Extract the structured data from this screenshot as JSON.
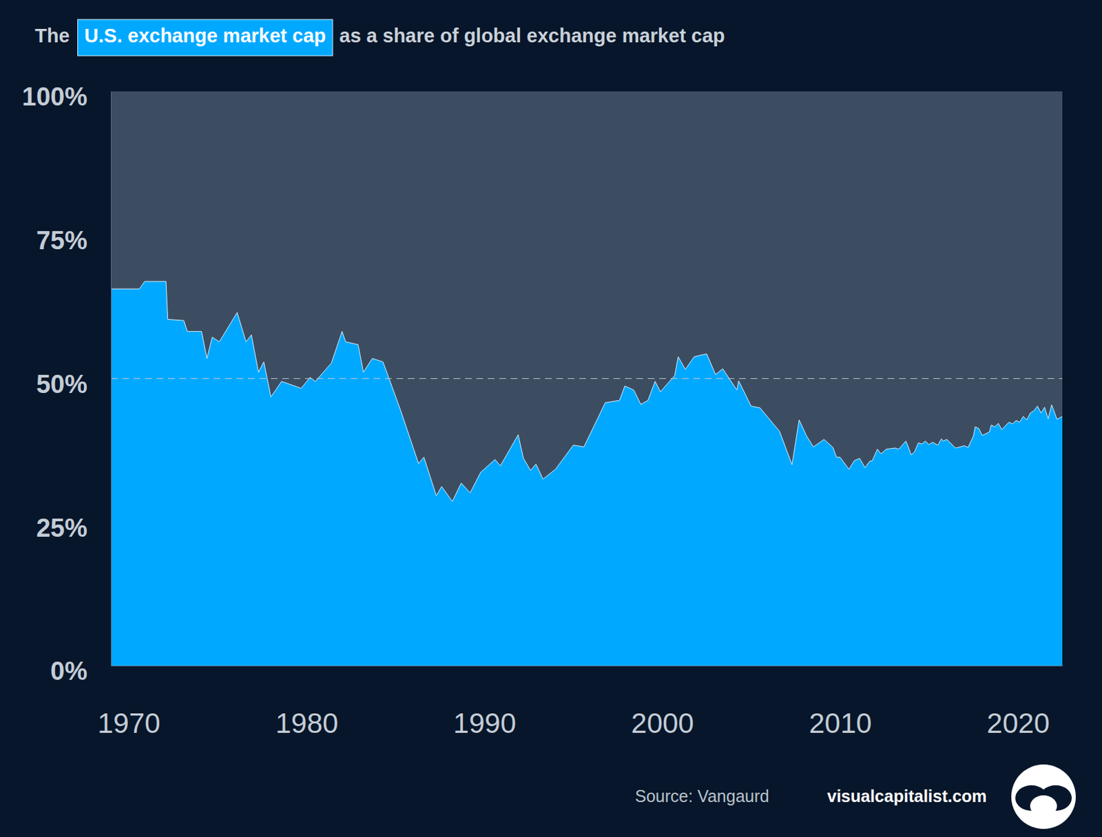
{
  "chart_data": {
    "type": "area",
    "title": {
      "before": "The",
      "highlight": "U.S. exchange market cap",
      "after": "as a share of global exchange market cap"
    },
    "source": "Source: Vangaurd",
    "site": "visualcapitalist.com",
    "color": "#00a8ff",
    "grid": false,
    "reference_line": 50,
    "xlim": [
      1969,
      2022.5
    ],
    "xticks": [
      1970,
      1980,
      1990,
      2000,
      2010,
      2020
    ],
    "ylim": [
      0,
      100
    ],
    "yticks": [
      {
        "value": 0,
        "label": "0%"
      },
      {
        "value": 25,
        "label": "25%"
      },
      {
        "value": 50,
        "label": "50%"
      },
      {
        "value": 75,
        "label": "75%"
      },
      {
        "value": 100,
        "label": "100%"
      }
    ],
    "x": [
      1969,
      1970.6,
      1970.9,
      1972.1,
      1972.2,
      1973.1,
      1973.3,
      1974.1,
      1974.4,
      1974.7,
      1975.1,
      1976.1,
      1976.6,
      1976.9,
      1977.3,
      1977.6,
      1978.0,
      1978.6,
      1979.7,
      1980.2,
      1980.5,
      1981.4,
      1982.0,
      1982.2,
      1982.9,
      1983.2,
      1983.7,
      1984.3,
      1985.3,
      1986.3,
      1986.6,
      1987.3,
      1987.6,
      1988.2,
      1988.7,
      1989.2,
      1989.8,
      1990.6,
      1990.9,
      1991.9,
      1992.2,
      1992.6,
      1992.9,
      1993.3,
      1994.0,
      1995.0,
      1995.6,
      1996.8,
      1997.6,
      1997.9,
      1998.4,
      1998.8,
      1999.2,
      1999.6,
      1999.9,
      2000.7,
      2000.9,
      2001.3,
      2001.8,
      2002.5,
      2003.0,
      2003.4,
      2004.2,
      2004.3,
      2005.0,
      2005.5,
      2006.6,
      2007.3,
      2007.7,
      2008.1,
      2008.5,
      2009.1,
      2009.6,
      2009.8,
      2010.0,
      2010.5,
      2010.8,
      2011.1,
      2011.4,
      2011.7,
      2011.8,
      2012.1,
      2012.3,
      2012.6,
      2013.1,
      2013.3,
      2013.7,
      2013.8,
      2014.0,
      2014.2,
      2014.4,
      2014.6,
      2014.8,
      2015.0,
      2015.2,
      2015.5,
      2015.7,
      2015.8,
      2016.0,
      2016.5,
      2017.0,
      2017.2,
      2017.5,
      2017.6,
      2017.8,
      2018.0,
      2018.4,
      2018.5,
      2018.7,
      2018.9,
      2019.1,
      2019.3,
      2019.5,
      2019.7,
      2019.9,
      2020.1,
      2020.3,
      2020.5,
      2020.7,
      2020.9,
      2021.1,
      2021.3,
      2021.5,
      2021.7,
      2021.9,
      2022.2,
      2022.5
    ],
    "values": [
      65.6,
      65.6,
      66.9,
      66.9,
      60.3,
      60.1,
      58.2,
      58.2,
      53.5,
      57.2,
      56.4,
      61.5,
      56.4,
      57.6,
      51.1,
      52.9,
      46.8,
      49.5,
      48.3,
      50.2,
      49.5,
      52.7,
      58.2,
      56.4,
      55.9,
      51.1,
      53.5,
      52.9,
      44.4,
      35.2,
      36.3,
      29.6,
      31.2,
      28.6,
      31.8,
      30.1,
      33.7,
      35.9,
      34.8,
      40.2,
      36.1,
      34.0,
      35.1,
      32.5,
      34.2,
      38.4,
      38.1,
      45.8,
      46.2,
      48.7,
      48.0,
      45.5,
      46.2,
      49.5,
      47.7,
      50.5,
      53.8,
      51.6,
      53.8,
      54.3,
      50.7,
      51.7,
      48.0,
      49.6,
      45.2,
      44.9,
      40.8,
      35.0,
      42.8,
      40.1,
      38.1,
      39.4,
      38.0,
      36.3,
      36.3,
      34.2,
      35.7,
      36.1,
      34.5,
      35.7,
      35.6,
      37.7,
      36.9,
      37.7,
      37.9,
      37.7,
      39.1,
      38.4,
      36.7,
      37.3,
      38.8,
      38.6,
      39.1,
      38.5,
      38.9,
      38.4,
      39.5,
      39.1,
      39.4,
      37.9,
      38.3,
      38.0,
      40.0,
      41.6,
      41.3,
      40.1,
      40.7,
      41.9,
      41.6,
      42.2,
      41.1,
      41.8,
      42.4,
      42.1,
      42.7,
      42.4,
      43.4,
      42.8,
      44.0,
      44.4,
      45.2,
      44.0,
      45.0,
      43.0,
      45.4,
      42.9,
      43.4
    ]
  }
}
